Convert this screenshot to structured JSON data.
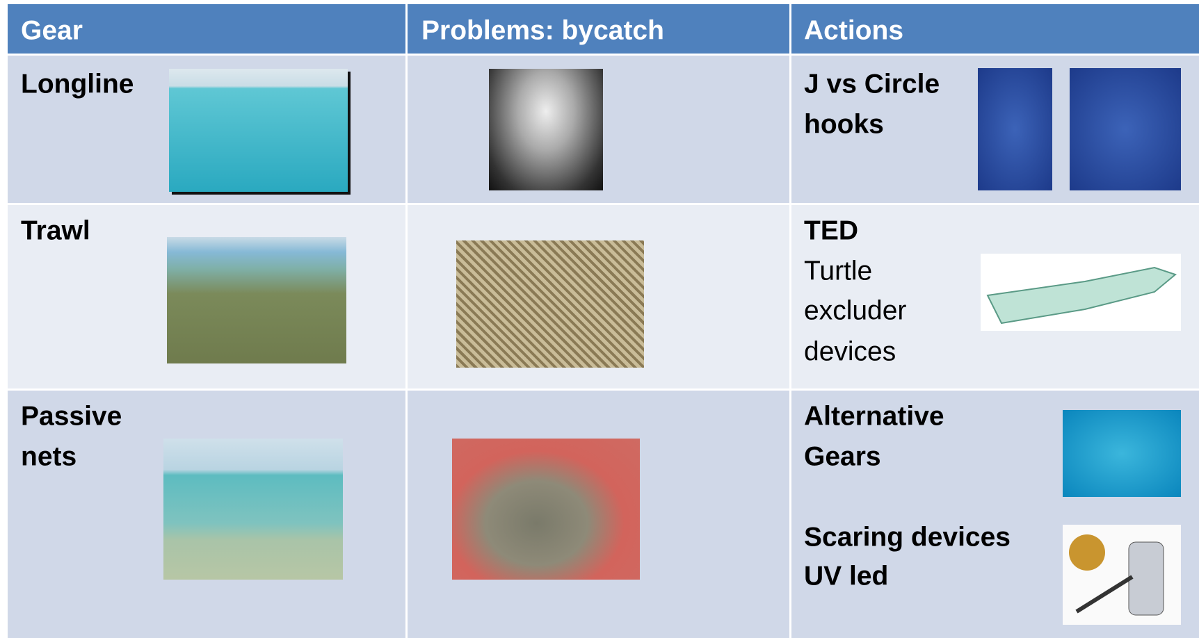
{
  "table": {
    "header": [
      "Gear",
      "Problems: bycatch",
      "Actions"
    ],
    "rows": [
      {
        "gear": [
          "Longline"
        ],
        "actions": [
          "J vs Circle",
          "hooks"
        ]
      },
      {
        "gear": [
          "Trawl"
        ],
        "actions_title": "TED",
        "actions": [
          "Turtle",
          "excluder",
          "devices"
        ]
      },
      {
        "gear": [
          "Passive",
          "nets"
        ],
        "actions": [
          "Alternative",
          "Gears"
        ],
        "actions_extra": [
          "Scaring devices",
          "UV led"
        ]
      }
    ]
  }
}
